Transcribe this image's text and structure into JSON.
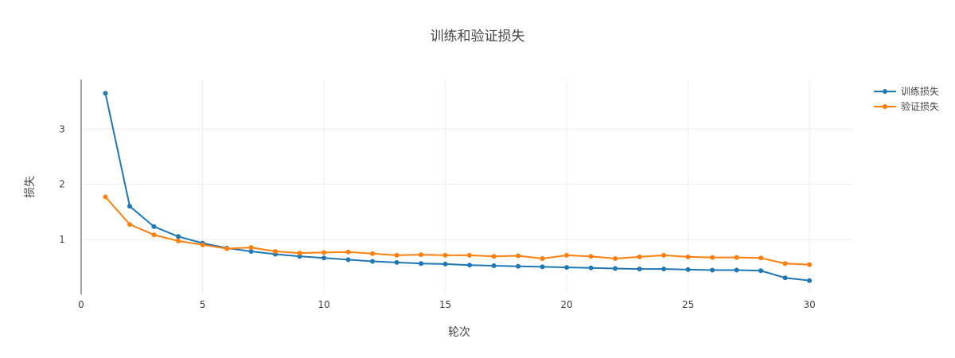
{
  "chart_data": {
    "type": "line",
    "title": "训练和验证损失",
    "xlabel": "轮次",
    "ylabel": "损失",
    "xlim": [
      0,
      31.8
    ],
    "ylim": [
      0,
      3.9
    ],
    "xticks": [
      0,
      5,
      10,
      15,
      20,
      25,
      30
    ],
    "yticks": [
      1,
      2,
      3
    ],
    "grid": true,
    "legend_position": "top-right",
    "x": [
      1,
      2,
      3,
      4,
      5,
      6,
      7,
      8,
      9,
      10,
      11,
      12,
      13,
      14,
      15,
      16,
      17,
      18,
      19,
      20,
      21,
      22,
      23,
      24,
      25,
      26,
      27,
      28,
      29,
      30
    ],
    "series": [
      {
        "name": "训练损失",
        "color": "#1f77b4",
        "values": [
          3.65,
          1.6,
          1.23,
          1.05,
          0.93,
          0.84,
          0.78,
          0.73,
          0.69,
          0.66,
          0.63,
          0.6,
          0.58,
          0.56,
          0.55,
          0.53,
          0.52,
          0.51,
          0.5,
          0.49,
          0.48,
          0.47,
          0.46,
          0.46,
          0.45,
          0.44,
          0.44,
          0.43,
          0.3,
          0.25
        ]
      },
      {
        "name": "验证损失",
        "color": "#ff7f0e",
        "values": [
          1.77,
          1.27,
          1.08,
          0.97,
          0.9,
          0.83,
          0.85,
          0.78,
          0.75,
          0.76,
          0.77,
          0.74,
          0.71,
          0.72,
          0.71,
          0.71,
          0.69,
          0.7,
          0.65,
          0.71,
          0.69,
          0.65,
          0.68,
          0.71,
          0.68,
          0.67,
          0.67,
          0.66,
          0.56,
          0.54
        ]
      }
    ]
  }
}
